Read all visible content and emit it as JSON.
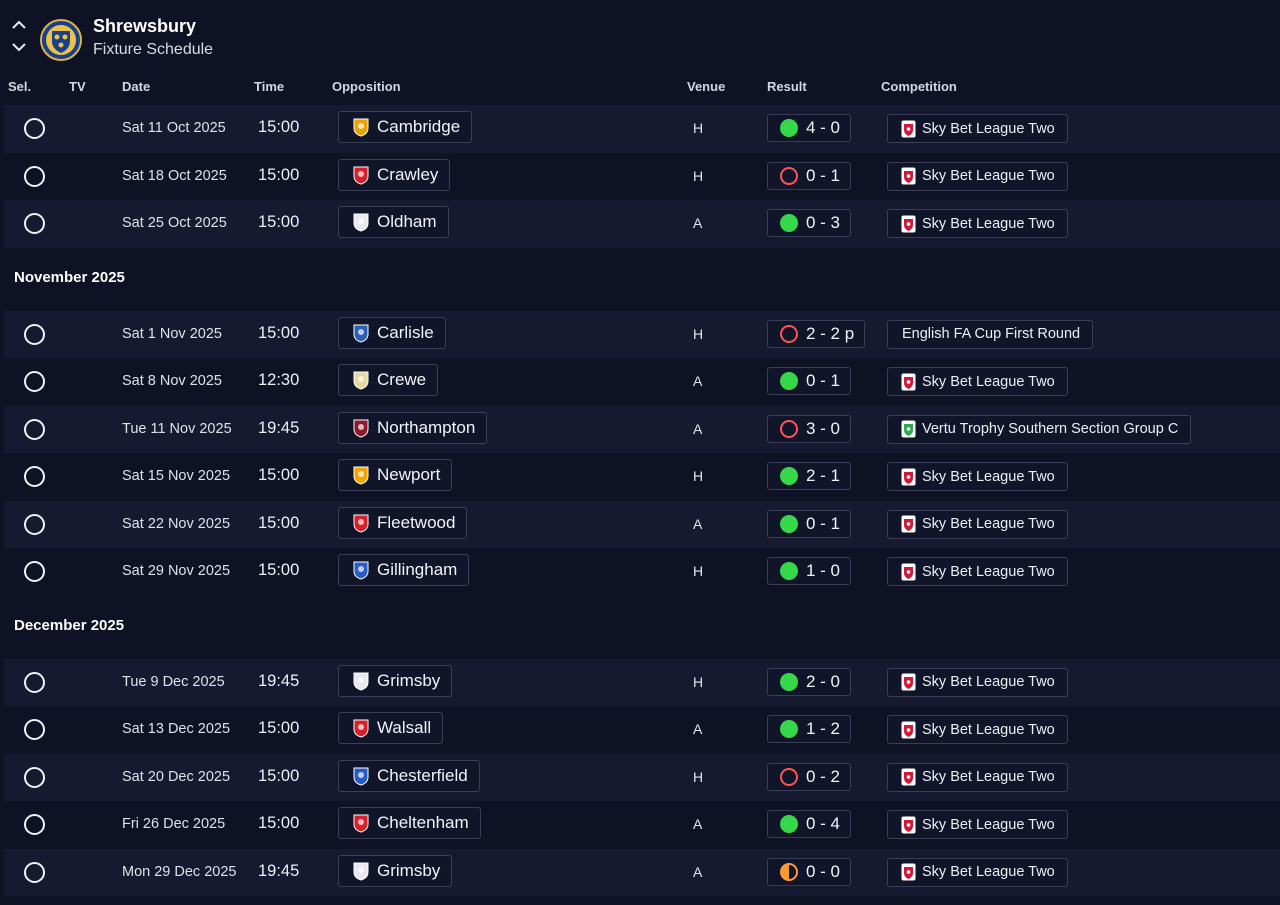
{
  "header": {
    "team": "Shrewsbury",
    "subtitle": "Fixture Schedule"
  },
  "columns": {
    "sel": "Sel.",
    "tv": "TV",
    "date": "Date",
    "time": "Time",
    "opposition": "Opposition",
    "venue": "Venue",
    "result": "Result",
    "competition": "Competition"
  },
  "months": [
    "November 2025",
    "December 2025"
  ],
  "fixtures": [
    {
      "date": "Sat 11 Oct 2025",
      "time": "15:00",
      "opp": "Cambridge",
      "venue": "H",
      "score": "4 - 0",
      "outcome": "win",
      "comp": "Sky Bet League Two",
      "crest": "#e8a300"
    },
    {
      "date": "Sat 18 Oct 2025",
      "time": "15:00",
      "opp": "Crawley",
      "venue": "H",
      "score": "0 - 1",
      "outcome": "loss",
      "comp": "Sky Bet League Two",
      "crest": "#d6202a"
    },
    {
      "date": "Sat 25 Oct 2025",
      "time": "15:00",
      "opp": "Oldham",
      "venue": "A",
      "score": "0 - 3",
      "outcome": "win",
      "comp": "Sky Bet League Two",
      "crest": "#e8e8ee"
    },
    {
      "date": "Sat 1 Nov 2025",
      "time": "15:00",
      "opp": "Carlisle",
      "venue": "H",
      "score": "2 - 2 p",
      "outcome": "loss",
      "comp": "English FA Cup First Round",
      "crest": "#2c5fb8",
      "noLogo": true
    },
    {
      "date": "Sat 8 Nov 2025",
      "time": "12:30",
      "opp": "Crewe",
      "venue": "A",
      "score": "0 - 1",
      "outcome": "win",
      "comp": "Sky Bet League Two",
      "crest": "#e8d8a0"
    },
    {
      "date": "Tue 11 Nov 2025",
      "time": "19:45",
      "opp": "Northampton",
      "venue": "A",
      "score": "3 - 0",
      "outcome": "loss",
      "comp": "Vertu Trophy Southern Section Group C",
      "crest": "#8b1a2e",
      "trophy": true
    },
    {
      "date": "Sat 15 Nov 2025",
      "time": "15:00",
      "opp": "Newport",
      "venue": "H",
      "score": "2 - 1",
      "outcome": "win",
      "comp": "Sky Bet League Two",
      "crest": "#f0a500"
    },
    {
      "date": "Sat 22 Nov 2025",
      "time": "15:00",
      "opp": "Fleetwood",
      "venue": "A",
      "score": "0 - 1",
      "outcome": "win",
      "comp": "Sky Bet League Two",
      "crest": "#d6202a"
    },
    {
      "date": "Sat 29 Nov 2025",
      "time": "15:00",
      "opp": "Gillingham",
      "venue": "H",
      "score": "1 - 0",
      "outcome": "win",
      "comp": "Sky Bet League Two",
      "crest": "#2a5cc8"
    },
    {
      "date": "Tue 9 Dec 2025",
      "time": "19:45",
      "opp": "Grimsby",
      "venue": "H",
      "score": "2 - 0",
      "outcome": "win",
      "comp": "Sky Bet League Two",
      "crest": "#e8e8ee"
    },
    {
      "date": "Sat 13 Dec 2025",
      "time": "15:00",
      "opp": "Walsall",
      "venue": "A",
      "score": "1 - 2",
      "outcome": "win",
      "comp": "Sky Bet League Two",
      "crest": "#d6202a"
    },
    {
      "date": "Sat 20 Dec 2025",
      "time": "15:00",
      "opp": "Chesterfield",
      "venue": "H",
      "score": "0 - 2",
      "outcome": "loss",
      "comp": "Sky Bet League Two",
      "crest": "#2a5cc8"
    },
    {
      "date": "Fri 26 Dec 2025",
      "time": "15:00",
      "opp": "Cheltenham",
      "venue": "A",
      "score": "0 - 4",
      "outcome": "win",
      "comp": "Sky Bet League Two",
      "crest": "#d6202a"
    },
    {
      "date": "Mon 29 Dec 2025",
      "time": "19:45",
      "opp": "Grimsby",
      "venue": "A",
      "score": "0 - 0",
      "outcome": "draw",
      "comp": "Sky Bet League Two",
      "crest": "#e8e8ee"
    }
  ],
  "colors": {
    "background": "#0f1224",
    "stripe": "#161a30",
    "win": "#35d84a",
    "loss": "#ff5454",
    "draw": "#ff9a2e",
    "league_logo": "#d11a3a"
  }
}
